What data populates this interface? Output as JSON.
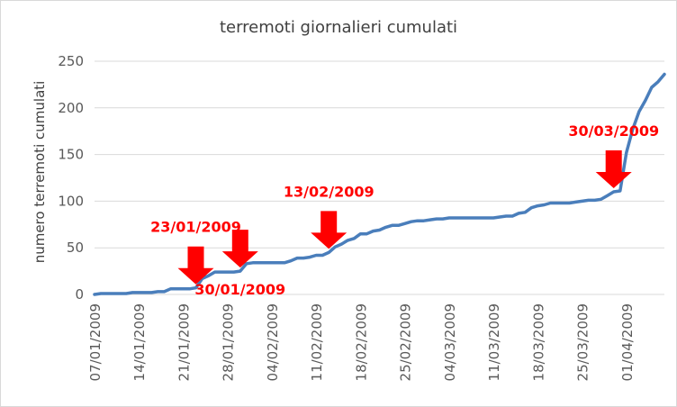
{
  "chart_data": {
    "type": "line",
    "title": "terremoti giornalieri cumulati",
    "xlabel": "",
    "ylabel": "numero terremoti cumulati",
    "ylim": [
      0,
      250
    ],
    "yticks": [
      0,
      50,
      100,
      150,
      200,
      250
    ],
    "xlim": [
      "2009-01-07",
      "2009-04-07"
    ],
    "xticks": [
      "07/01/2009",
      "14/01/2009",
      "21/01/2009",
      "28/01/2009",
      "04/02/2009",
      "11/02/2009",
      "18/02/2009",
      "25/02/2009",
      "04/03/2009",
      "11/03/2009",
      "18/03/2009",
      "25/03/2009",
      "01/04/2009"
    ],
    "grid": "horizontal",
    "legend": "none",
    "series": [
      {
        "color": "#4a7ebb",
        "x": [
          "2009-01-07",
          "2009-01-08",
          "2009-01-09",
          "2009-01-10",
          "2009-01-11",
          "2009-01-12",
          "2009-01-13",
          "2009-01-14",
          "2009-01-15",
          "2009-01-16",
          "2009-01-17",
          "2009-01-18",
          "2009-01-19",
          "2009-01-20",
          "2009-01-21",
          "2009-01-22",
          "2009-01-23",
          "2009-01-24",
          "2009-01-25",
          "2009-01-26",
          "2009-01-27",
          "2009-01-28",
          "2009-01-29",
          "2009-01-30",
          "2009-01-31",
          "2009-02-01",
          "2009-02-02",
          "2009-02-03",
          "2009-02-04",
          "2009-02-05",
          "2009-02-06",
          "2009-02-07",
          "2009-02-08",
          "2009-02-09",
          "2009-02-10",
          "2009-02-11",
          "2009-02-12",
          "2009-02-13",
          "2009-02-14",
          "2009-02-15",
          "2009-02-16",
          "2009-02-17",
          "2009-02-18",
          "2009-02-19",
          "2009-02-20",
          "2009-02-21",
          "2009-02-22",
          "2009-02-23",
          "2009-02-24",
          "2009-02-25",
          "2009-02-26",
          "2009-02-27",
          "2009-02-28",
          "2009-03-01",
          "2009-03-02",
          "2009-03-03",
          "2009-03-04",
          "2009-03-05",
          "2009-03-06",
          "2009-03-07",
          "2009-03-08",
          "2009-03-09",
          "2009-03-10",
          "2009-03-11",
          "2009-03-12",
          "2009-03-13",
          "2009-03-14",
          "2009-03-15",
          "2009-03-16",
          "2009-03-17",
          "2009-03-18",
          "2009-03-19",
          "2009-03-20",
          "2009-03-21",
          "2009-03-22",
          "2009-03-23",
          "2009-03-24",
          "2009-03-25",
          "2009-03-26",
          "2009-03-27",
          "2009-03-28",
          "2009-03-29",
          "2009-03-30",
          "2009-03-31",
          "2009-04-01",
          "2009-04-02",
          "2009-04-03",
          "2009-04-04",
          "2009-04-05",
          "2009-04-06",
          "2009-04-07"
        ],
        "values": [
          0,
          1,
          1,
          1,
          1,
          1,
          2,
          2,
          2,
          2,
          3,
          3,
          6,
          6,
          6,
          6,
          7,
          17,
          20,
          24,
          24,
          24,
          24,
          25,
          33,
          34,
          34,
          34,
          34,
          34,
          34,
          36,
          39,
          39,
          40,
          42,
          42,
          45,
          51,
          54,
          58,
          60,
          65,
          65,
          68,
          69,
          72,
          74,
          74,
          76,
          78,
          79,
          79,
          80,
          81,
          81,
          82,
          82,
          82,
          82,
          82,
          82,
          82,
          82,
          83,
          84,
          84,
          87,
          88,
          93,
          95,
          96,
          98,
          98,
          98,
          98,
          99,
          100,
          101,
          101,
          102,
          106,
          110,
          111,
          152,
          177,
          196,
          208,
          222,
          228,
          236
        ]
      }
    ],
    "annotations": [
      {
        "text": "23/01/2009",
        "arrow_at": "2009-01-23",
        "label_pos": "above"
      },
      {
        "text": "30/01/2009",
        "arrow_at": "2009-01-30",
        "label_pos": "below"
      },
      {
        "text": "13/02/2009",
        "arrow_at": "2009-02-13",
        "label_pos": "above"
      },
      {
        "text": "30/03/2009",
        "arrow_at": "2009-03-30",
        "label_pos": "above"
      }
    ],
    "annotation_color": "#ff0000"
  }
}
